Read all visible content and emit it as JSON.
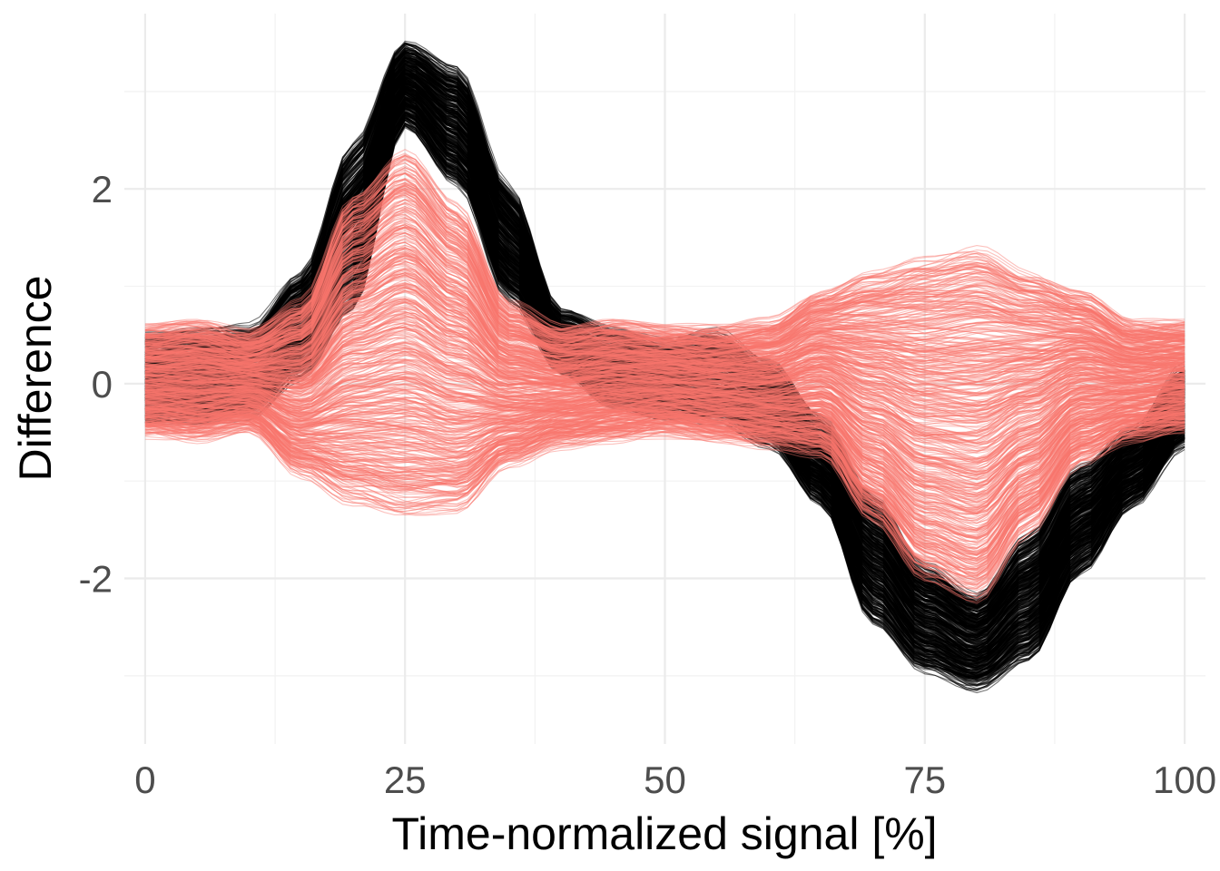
{
  "chart_data": {
    "type": "line",
    "xlabel": "Time-normalized signal [%]",
    "ylabel": "Difference",
    "xlim": [
      -2,
      102
    ],
    "ylim": [
      -3.7,
      3.8
    ],
    "x_ticks": [
      0,
      25,
      50,
      75,
      100
    ],
    "x_tick_labels": [
      "0",
      "25",
      "50",
      "75",
      "100"
    ],
    "y_ticks": [
      -2,
      0,
      2
    ],
    "y_tick_labels": [
      "-2",
      "0",
      "2"
    ],
    "grid": true,
    "legend": "none",
    "series": [
      {
        "color": "#000000",
        "curve_count": 450,
        "opacity": 0.55,
        "x": [
          0,
          5,
          10,
          15,
          20,
          25,
          30,
          35,
          40,
          45,
          50,
          55,
          60,
          65,
          70,
          75,
          80,
          85,
          90,
          95,
          100
        ],
        "y_min": [
          -0.35,
          -0.35,
          -0.3,
          0.1,
          0.8,
          2.7,
          2.1,
          0.9,
          0.15,
          -0.2,
          -0.3,
          -0.35,
          -0.6,
          -1.2,
          -2.4,
          -2.9,
          -3.1,
          -2.8,
          -1.9,
          -1.2,
          -0.6
        ],
        "y_max": [
          0.45,
          0.5,
          0.55,
          1.1,
          2.4,
          3.45,
          3.2,
          2.0,
          0.7,
          0.5,
          0.4,
          0.5,
          0.2,
          -0.4,
          -1.2,
          -1.9,
          -2.2,
          -1.6,
          -0.9,
          -0.5,
          0.15
        ]
      },
      {
        "color": "#F8766D",
        "curve_count": 520,
        "opacity": 0.45,
        "x": [
          0,
          5,
          10,
          15,
          20,
          25,
          30,
          35,
          40,
          45,
          50,
          55,
          60,
          65,
          70,
          75,
          80,
          85,
          90,
          95,
          100
        ],
        "y_min": [
          -0.5,
          -0.55,
          -0.45,
          -0.9,
          -1.2,
          -1.35,
          -1.3,
          -0.8,
          -0.6,
          -0.55,
          -0.5,
          -0.55,
          -0.6,
          -0.7,
          -1.4,
          -2.0,
          -2.2,
          -1.5,
          -0.8,
          -0.55,
          -0.45
        ],
        "y_max": [
          0.55,
          0.6,
          0.5,
          0.8,
          1.9,
          2.35,
          1.8,
          0.8,
          0.55,
          0.6,
          0.55,
          0.55,
          0.6,
          0.9,
          1.1,
          1.25,
          1.35,
          1.1,
          0.9,
          0.6,
          0.6
        ]
      }
    ]
  }
}
